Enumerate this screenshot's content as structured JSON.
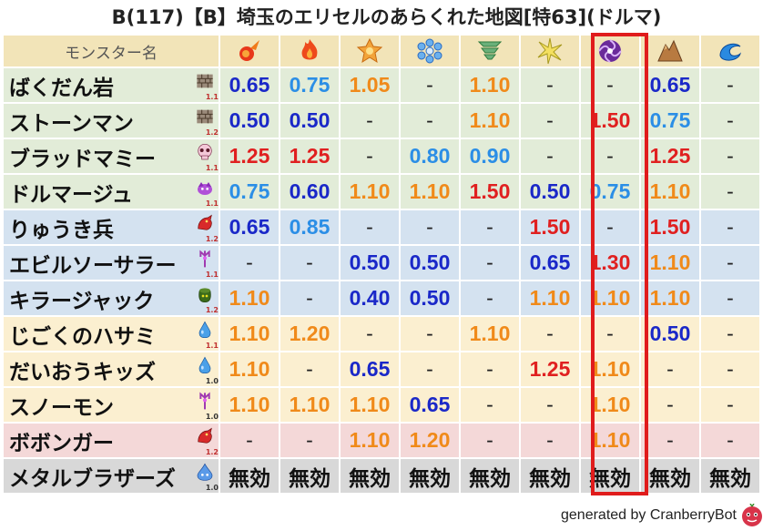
{
  "title": "B(117)【B】埼玉のエリセルのあらくれた地図[特63](ドルマ)",
  "header": {
    "name_col": "モンスター名",
    "elements": [
      {
        "icon": "fire-ball-icon"
      },
      {
        "icon": "flame-icon"
      },
      {
        "icon": "explosion-icon"
      },
      {
        "icon": "ice-icon"
      },
      {
        "icon": "wind-icon"
      },
      {
        "icon": "light-icon"
      },
      {
        "icon": "dark-dorma-icon"
      },
      {
        "icon": "earth-icon"
      },
      {
        "icon": "water-icon"
      }
    ]
  },
  "rows": [
    {
      "name": "ばくだん岩",
      "level": "1.1",
      "icon": "brick-icon",
      "bg": "g",
      "cells": [
        [
          "0.65",
          "blue"
        ],
        [
          "0.75",
          "lblue"
        ],
        [
          "1.05",
          "orange"
        ],
        [
          "-",
          "dash"
        ],
        [
          "1.10",
          "orange"
        ],
        [
          "-",
          "dash"
        ],
        [
          "-",
          "dash"
        ],
        [
          "0.65",
          "blue"
        ],
        [
          "-",
          "dash"
        ]
      ]
    },
    {
      "name": "ストーンマン",
      "level": "1.2",
      "icon": "brick-icon",
      "bg": "g",
      "cells": [
        [
          "0.50",
          "blue"
        ],
        [
          "0.50",
          "blue"
        ],
        [
          "-",
          "dash"
        ],
        [
          "-",
          "dash"
        ],
        [
          "1.10",
          "orange"
        ],
        [
          "-",
          "dash"
        ],
        [
          "1.50",
          "red"
        ],
        [
          "0.75",
          "lblue"
        ],
        [
          "-",
          "dash"
        ]
      ]
    },
    {
      "name": "ブラッドマミー",
      "level": "1.1",
      "icon": "skull-icon",
      "bg": "g",
      "cells": [
        [
          "1.25",
          "red"
        ],
        [
          "1.25",
          "red"
        ],
        [
          "-",
          "dash"
        ],
        [
          "0.80",
          "lblue"
        ],
        [
          "0.90",
          "lblue"
        ],
        [
          "-",
          "dash"
        ],
        [
          "-",
          "dash"
        ],
        [
          "1.25",
          "red"
        ],
        [
          "-",
          "dash"
        ]
      ]
    },
    {
      "name": "ドルマージュ",
      "level": "1.1",
      "icon": "slime-purple-icon",
      "bg": "g",
      "cells": [
        [
          "0.75",
          "lblue"
        ],
        [
          "0.60",
          "blue"
        ],
        [
          "1.10",
          "orange"
        ],
        [
          "1.10",
          "orange"
        ],
        [
          "1.50",
          "red"
        ],
        [
          "0.50",
          "blue"
        ],
        [
          "0.75",
          "lblue"
        ],
        [
          "1.10",
          "orange"
        ],
        [
          "-",
          "dash"
        ]
      ]
    },
    {
      "name": "りゅうき兵",
      "level": "1.2",
      "icon": "dragon-icon",
      "bg": "b",
      "cells": [
        [
          "0.65",
          "blue"
        ],
        [
          "0.85",
          "lblue"
        ],
        [
          "-",
          "dash"
        ],
        [
          "-",
          "dash"
        ],
        [
          "-",
          "dash"
        ],
        [
          "1.50",
          "red"
        ],
        [
          "-",
          "dash"
        ],
        [
          "1.50",
          "red"
        ],
        [
          "-",
          "dash"
        ]
      ]
    },
    {
      "name": "エビルソーサラー",
      "level": "1.1",
      "icon": "trident-icon",
      "bg": "b",
      "cells": [
        [
          "-",
          "dash"
        ],
        [
          "-",
          "dash"
        ],
        [
          "0.50",
          "blue"
        ],
        [
          "0.50",
          "blue"
        ],
        [
          "-",
          "dash"
        ],
        [
          "0.65",
          "blue"
        ],
        [
          "1.30",
          "red"
        ],
        [
          "1.10",
          "orange"
        ],
        [
          "-",
          "dash"
        ]
      ]
    },
    {
      "name": "キラージャック",
      "level": "1.2",
      "icon": "pot-icon",
      "bg": "b",
      "cells": [
        [
          "1.10",
          "orange"
        ],
        [
          "-",
          "dash"
        ],
        [
          "0.40",
          "blue"
        ],
        [
          "0.50",
          "blue"
        ],
        [
          "-",
          "dash"
        ],
        [
          "1.10",
          "orange"
        ],
        [
          "1.10",
          "orange"
        ],
        [
          "1.10",
          "orange"
        ],
        [
          "-",
          "dash"
        ]
      ]
    },
    {
      "name": "じごくのハサミ",
      "level": "1.1",
      "icon": "drop-icon",
      "bg": "y",
      "cells": [
        [
          "1.10",
          "orange"
        ],
        [
          "1.20",
          "orange"
        ],
        [
          "-",
          "dash"
        ],
        [
          "-",
          "dash"
        ],
        [
          "1.10",
          "orange"
        ],
        [
          "-",
          "dash"
        ],
        [
          "-",
          "dash"
        ],
        [
          "0.50",
          "blue"
        ],
        [
          "-",
          "dash"
        ]
      ]
    },
    {
      "name": "だいおうキッズ",
      "level": "1.0",
      "icon": "drop-icon",
      "bg": "y",
      "cells": [
        [
          "1.10",
          "orange"
        ],
        [
          "-",
          "dash"
        ],
        [
          "0.65",
          "blue"
        ],
        [
          "-",
          "dash"
        ],
        [
          "-",
          "dash"
        ],
        [
          "1.25",
          "red"
        ],
        [
          "1.10",
          "orange"
        ],
        [
          "-",
          "dash"
        ],
        [
          "-",
          "dash"
        ]
      ]
    },
    {
      "name": "スノーモン",
      "level": "1.0",
      "icon": "trident-icon",
      "bg": "y",
      "cells": [
        [
          "1.10",
          "orange"
        ],
        [
          "1.10",
          "orange"
        ],
        [
          "1.10",
          "orange"
        ],
        [
          "0.65",
          "blue"
        ],
        [
          "-",
          "dash"
        ],
        [
          "-",
          "dash"
        ],
        [
          "1.10",
          "orange"
        ],
        [
          "-",
          "dash"
        ],
        [
          "-",
          "dash"
        ]
      ]
    },
    {
      "name": "ボボンガー",
      "level": "1.2",
      "icon": "dragon-icon",
      "bg": "p",
      "cells": [
        [
          "-",
          "dash"
        ],
        [
          "-",
          "dash"
        ],
        [
          "1.10",
          "orange"
        ],
        [
          "1.20",
          "orange"
        ],
        [
          "-",
          "dash"
        ],
        [
          "-",
          "dash"
        ],
        [
          "1.10",
          "orange"
        ],
        [
          "-",
          "dash"
        ],
        [
          "-",
          "dash"
        ]
      ]
    },
    {
      "name": "メタルブラザーズ",
      "level": "1.0",
      "icon": "metal-slime-icon",
      "bg": "gr",
      "cells": [
        [
          "無効",
          "nul"
        ],
        [
          "無効",
          "nul"
        ],
        [
          "無効",
          "nul"
        ],
        [
          "無効",
          "nul"
        ],
        [
          "無効",
          "nul"
        ],
        [
          "無効",
          "nul"
        ],
        [
          "無効",
          "nul"
        ],
        [
          "無効",
          "nul"
        ],
        [
          "無効",
          "nul"
        ]
      ]
    }
  ],
  "footer": "generated by CranberryBot",
  "colors": {
    "red": "#e02020",
    "blue": "#1a28c8",
    "lblue": "#2b8ee6",
    "orange": "#f08a1a",
    "highlight": "#e01c1c"
  }
}
